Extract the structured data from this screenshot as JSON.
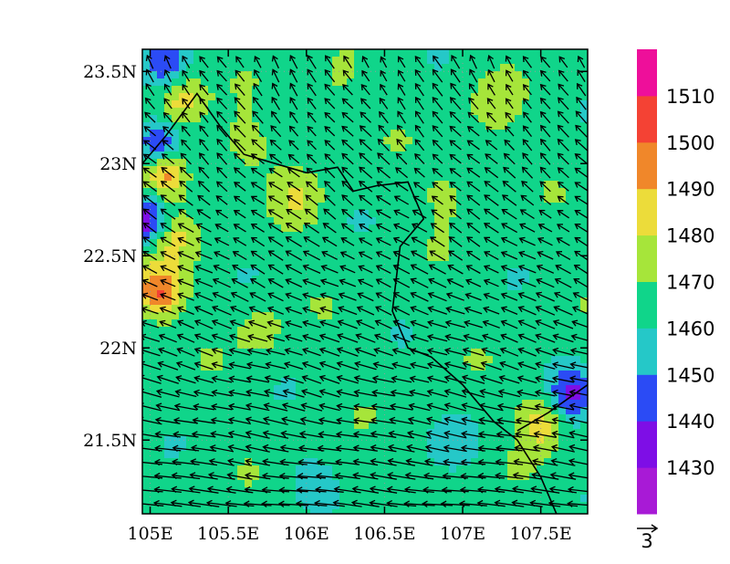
{
  "chart_data": {
    "type": "contour-map",
    "title": "",
    "x_ticks": [
      {
        "value": 105,
        "label": "105E"
      },
      {
        "value": 105.5,
        "label": "105.5E"
      },
      {
        "value": 106,
        "label": "106E"
      },
      {
        "value": 106.5,
        "label": "106.5E"
      },
      {
        "value": 107,
        "label": "107E"
      },
      {
        "value": 107.5,
        "label": "107.5E"
      }
    ],
    "y_ticks": [
      {
        "value": 21.5,
        "label": "21.5N"
      },
      {
        "value": 22,
        "label": "22N"
      },
      {
        "value": 22.5,
        "label": "22.5N"
      },
      {
        "value": 23,
        "label": "23N"
      },
      {
        "value": 23.5,
        "label": "23.5N"
      }
    ],
    "xlim": [
      104.95,
      107.8
    ],
    "ylim": [
      21.1,
      23.62
    ],
    "grid": "dotted",
    "field_levels": [
      1430,
      1440,
      1450,
      1460,
      1470,
      1480,
      1490,
      1500,
      1510
    ],
    "colorbar": {
      "labels": [
        "1430",
        "1440",
        "1450",
        "1460",
        "1470",
        "1480",
        "1490",
        "1500",
        "1510"
      ],
      "colors": [
        "#a81ad6",
        "#7e0ee6",
        "#2b4bf5",
        "#25c8c8",
        "#10d58a",
        "#a6e53a",
        "#ecdc3a",
        "#f0872a",
        "#f44234",
        "#ee0f9a"
      ],
      "placement": "right"
    },
    "background_value": 1465,
    "anomalies": [
      {
        "lon": 105.05,
        "lat": 23.1,
        "value": 1432
      },
      {
        "lon": 104.98,
        "lat": 22.7,
        "value": 1430
      },
      {
        "lon": 105.1,
        "lat": 23.55,
        "value": 1445
      },
      {
        "lon": 105.1,
        "lat": 22.95,
        "value": 1500
      },
      {
        "lon": 105.05,
        "lat": 22.3,
        "value": 1500
      },
      {
        "lon": 105.2,
        "lat": 23.35,
        "value": 1486
      },
      {
        "lon": 105.15,
        "lat": 22.6,
        "value": 1480
      },
      {
        "lon": 105.95,
        "lat": 22.8,
        "value": 1478
      },
      {
        "lon": 105.7,
        "lat": 22.1,
        "value": 1476
      },
      {
        "lon": 107.5,
        "lat": 21.6,
        "value": 1488
      },
      {
        "lon": 107.7,
        "lat": 21.75,
        "value": 1440
      },
      {
        "lon": 107.2,
        "lat": 23.3,
        "value": 1476
      },
      {
        "lon": 106.9,
        "lat": 22.85,
        "value": 1474
      },
      {
        "lon": 106.2,
        "lat": 23.45,
        "value": 1473
      },
      {
        "lon": 107.0,
        "lat": 21.5,
        "value": 1456
      },
      {
        "lon": 106.0,
        "lat": 21.3,
        "value": 1458
      },
      {
        "lon": 105.6,
        "lat": 23.1,
        "value": 1475
      }
    ],
    "wind_vectors": {
      "reference_label": "3",
      "reference_value": 3,
      "u_north": -1.0,
      "v_north": 1.8,
      "u_south": -4.5,
      "v_south": 0.4
    },
    "boundary_lines": [
      [
        [
          104.95,
          23.0
        ],
        [
          105.1,
          23.15
        ],
        [
          105.3,
          23.38
        ],
        [
          105.45,
          23.2
        ],
        [
          105.6,
          23.05
        ],
        [
          105.8,
          23.0
        ],
        [
          106.0,
          22.95
        ],
        [
          106.2,
          22.98
        ],
        [
          106.3,
          22.85
        ],
        [
          106.45,
          22.88
        ],
        [
          106.65,
          22.9
        ],
        [
          106.75,
          22.7
        ],
        [
          106.6,
          22.55
        ],
        [
          106.55,
          22.2
        ],
        [
          106.65,
          22.0
        ],
        [
          106.8,
          21.95
        ],
        [
          107.0,
          21.8
        ],
        [
          107.2,
          21.6
        ],
        [
          107.35,
          21.5
        ],
        [
          107.5,
          21.3
        ],
        [
          107.6,
          21.1
        ]
      ],
      [
        [
          107.35,
          21.55
        ],
        [
          107.55,
          21.65
        ],
        [
          107.8,
          21.8
        ]
      ]
    ]
  }
}
